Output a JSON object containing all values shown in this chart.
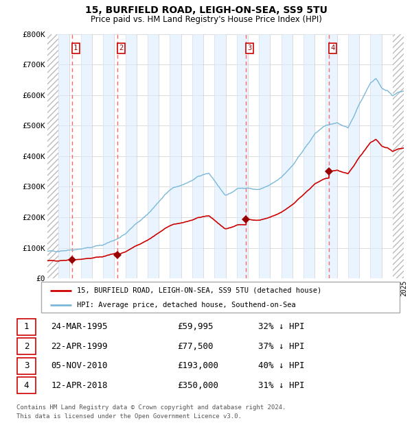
{
  "title1": "15, BURFIELD ROAD, LEIGH-ON-SEA, SS9 5TU",
  "title2": "Price paid vs. HM Land Registry's House Price Index (HPI)",
  "ylim": [
    0,
    800000
  ],
  "yticks": [
    0,
    100000,
    200000,
    300000,
    400000,
    500000,
    600000,
    700000,
    800000
  ],
  "ytick_labels": [
    "£0",
    "£100K",
    "£200K",
    "£300K",
    "£400K",
    "£500K",
    "£600K",
    "£700K",
    "£800K"
  ],
  "hpi_color": "#7ab8d9",
  "price_color": "#cc0000",
  "marker_color": "#990000",
  "vline_color": "#ff6666",
  "shade_color": "#ddeeff",
  "legend_line1": "15, BURFIELD ROAD, LEIGH-ON-SEA, SS9 5TU (detached house)",
  "legend_line2": "HPI: Average price, detached house, Southend-on-Sea",
  "footnote1": "Contains HM Land Registry data © Crown copyright and database right 2024.",
  "footnote2": "This data is licensed under the Open Government Licence v3.0.",
  "table_rows": [
    [
      "1",
      "24-MAR-1995",
      "£59,995",
      "32% ↓ HPI"
    ],
    [
      "2",
      "22-APR-1999",
      "£77,500",
      "37% ↓ HPI"
    ],
    [
      "3",
      "05-NOV-2010",
      "£193,000",
      "40% ↓ HPI"
    ],
    [
      "4",
      "12-APR-2018",
      "£350,000",
      "31% ↓ HPI"
    ]
  ],
  "t_dates": [
    1995.23,
    1999.31,
    2010.84,
    2018.29
  ],
  "t_prices": [
    59995,
    77500,
    193000,
    350000
  ],
  "x_start_year": 1993,
  "x_end_year": 2025,
  "hpi_anchors_x": [
    1993.0,
    1994.0,
    1995.0,
    1996.0,
    1997.0,
    1998.0,
    1999.0,
    2000.0,
    2001.0,
    2002.0,
    2003.0,
    2004.0,
    2005.0,
    2006.0,
    2007.0,
    2007.5,
    2008.5,
    2009.0,
    2009.5,
    2010.0,
    2011.0,
    2012.0,
    2013.0,
    2014.0,
    2015.0,
    2016.0,
    2017.0,
    2017.5,
    2018.0,
    2019.0,
    2019.5,
    2020.0,
    2021.0,
    2021.5,
    2022.0,
    2022.5,
    2023.0,
    2024.0,
    2025.0
  ],
  "hpi_anchors_y": [
    88000,
    90000,
    93000,
    97000,
    102000,
    110000,
    125000,
    145000,
    180000,
    210000,
    250000,
    290000,
    305000,
    320000,
    340000,
    345000,
    295000,
    270000,
    280000,
    295000,
    295000,
    290000,
    305000,
    330000,
    370000,
    420000,
    470000,
    490000,
    500000,
    510000,
    500000,
    490000,
    570000,
    605000,
    640000,
    655000,
    625000,
    600000,
    615000
  ]
}
